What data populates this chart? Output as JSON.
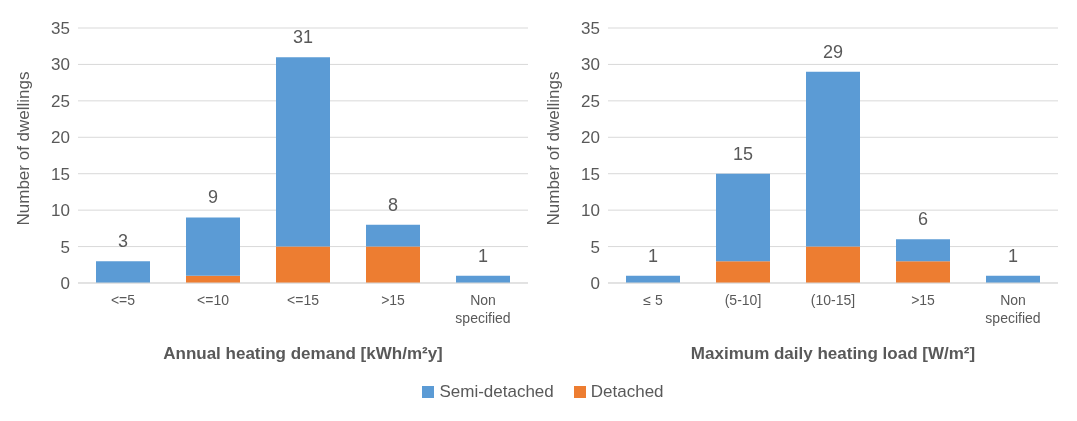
{
  "chart_data": [
    {
      "type": "bar",
      "stacked": true,
      "xlabel": "Annual heating demand [kWh/m²y]",
      "ylabel": "Number of dwellings",
      "categories": [
        "<=5",
        "<=10",
        "<=15",
        ">15",
        "Non specified"
      ],
      "series": [
        {
          "name": "Detached",
          "color": "#ed7d31",
          "values": [
            0,
            1,
            5,
            5,
            0
          ]
        },
        {
          "name": "Semi-detached",
          "color": "#5b9bd5",
          "values": [
            3,
            8,
            26,
            3,
            1
          ]
        }
      ],
      "totals": [
        "3",
        "9",
        "31",
        "8",
        "1"
      ],
      "ylim": [
        0,
        35
      ],
      "yticks": [
        0,
        5,
        10,
        15,
        20,
        25,
        30,
        35
      ],
      "grid": "y",
      "legend": "bottom"
    },
    {
      "type": "bar",
      "stacked": true,
      "xlabel": "Maximum daily heating load [W/m²]",
      "ylabel": "Number of dwellings",
      "categories": [
        "≤ 5",
        "(5-10]",
        "(10-15]",
        ">15",
        "Non specified"
      ],
      "series": [
        {
          "color": "#ed7d31",
          "values": [
            0,
            3,
            5,
            3,
            0
          ]
        },
        {
          "color": "#5b9bd5",
          "values": [
            1,
            12,
            24,
            3,
            1
          ]
        }
      ],
      "totals": [
        "1",
        "15",
        "29",
        "6",
        "1"
      ],
      "ylim": [
        0,
        35
      ],
      "yticks": [
        0,
        5,
        10,
        15,
        20,
        25,
        30,
        35
      ],
      "grid": "y"
    }
  ]
}
